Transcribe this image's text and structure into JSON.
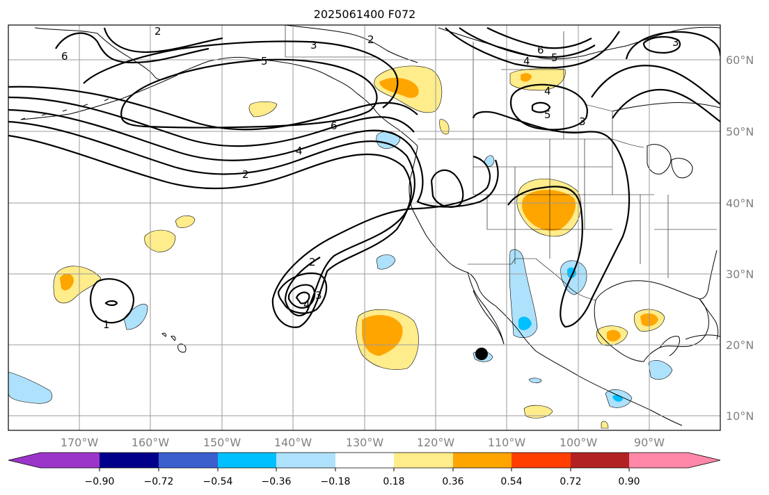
{
  "title": "2025061400 F072",
  "map": {
    "lon_range": [
      -180,
      -80
    ],
    "lat_range": [
      8,
      65
    ],
    "lat_ticks": [
      {
        "value": 10,
        "label": "10°N"
      },
      {
        "value": 20,
        "label": "20°N"
      },
      {
        "value": 30,
        "label": "30°N"
      },
      {
        "value": 40,
        "label": "40°N"
      },
      {
        "value": 50,
        "label": "50°N"
      },
      {
        "value": 60,
        "label": "60°N"
      }
    ],
    "lon_ticks": [
      {
        "value": -170,
        "label": "170°W"
      },
      {
        "value": -160,
        "label": "160°W"
      },
      {
        "value": -150,
        "label": "150°W"
      },
      {
        "value": -140,
        "label": "140°W"
      },
      {
        "value": -130,
        "label": "130°W"
      },
      {
        "value": -120,
        "label": "120°W"
      },
      {
        "value": -110,
        "label": "110°W"
      },
      {
        "value": -100,
        "label": "100°W"
      },
      {
        "value": -90,
        "label": "90°W"
      }
    ],
    "contour_labels": [
      "6",
      "5",
      "4",
      "3",
      "2",
      "1"
    ],
    "grid_color": "#9a9a9a",
    "label_color": "#808080"
  },
  "colorbar": {
    "colors": [
      "#9b35c9",
      "#00008b",
      "#3a5fcd",
      "#00bfff",
      "#aee1fb",
      "#ffffff",
      "#ffec8b",
      "#ffa500",
      "#ff3e00",
      "#b22222",
      "#ff88a8"
    ],
    "labels": [
      "−0.90",
      "−0.72",
      "−0.54",
      "−0.36",
      "−0.18",
      "0.18",
      "0.36",
      "0.54",
      "0.72",
      "0.90"
    ]
  }
}
